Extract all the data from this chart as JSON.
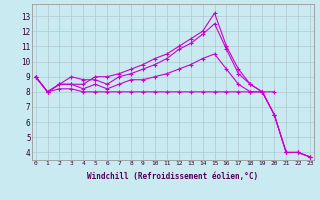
{
  "background_color": "#c8eaf0",
  "line_color": "#cc00cc",
  "grid_color": "#b0c8d0",
  "xlabel": "Windchill (Refroidissement éolien,°C)",
  "x_ticks": [
    0,
    1,
    2,
    3,
    4,
    5,
    6,
    7,
    8,
    9,
    10,
    11,
    12,
    13,
    14,
    15,
    16,
    17,
    18,
    19,
    20,
    21,
    22,
    23
  ],
  "y_ticks": [
    4,
    5,
    6,
    7,
    8,
    9,
    10,
    11,
    12,
    13
  ],
  "ylim": [
    3.5,
    13.8
  ],
  "xlim": [
    -0.3,
    23.3
  ],
  "lines": [
    {
      "x": [
        0,
        1,
        2,
        3,
        4,
        5,
        6,
        7,
        8,
        9,
        10,
        11,
        12,
        13,
        14,
        15,
        16,
        17,
        18,
        19,
        20,
        21,
        22,
        23
      ],
      "y": [
        9.0,
        8.0,
        8.5,
        8.5,
        8.5,
        9.0,
        9.0,
        9.2,
        9.5,
        9.8,
        10.2,
        10.5,
        11.0,
        11.5,
        12.0,
        13.2,
        11.0,
        9.5,
        8.5,
        8.0,
        6.5,
        4.0,
        4.0,
        3.7
      ]
    },
    {
      "x": [
        0,
        1,
        2,
        3,
        4,
        5,
        6,
        7,
        8,
        9,
        10,
        11,
        12,
        13,
        14,
        15,
        16,
        17,
        18,
        19,
        20,
        21,
        22,
        23
      ],
      "y": [
        9.0,
        8.0,
        8.5,
        9.0,
        8.8,
        8.8,
        8.5,
        9.0,
        9.2,
        9.5,
        9.8,
        10.2,
        10.8,
        11.2,
        11.8,
        12.5,
        10.8,
        9.2,
        8.5,
        8.0,
        6.5,
        4.0,
        4.0,
        3.7
      ]
    },
    {
      "x": [
        0,
        1,
        2,
        3,
        4,
        5,
        6,
        7,
        8,
        9,
        10,
        11,
        12,
        13,
        14,
        15,
        16,
        17,
        18,
        19,
        20,
        21,
        22,
        23
      ],
      "y": [
        9.0,
        8.0,
        8.5,
        8.5,
        8.2,
        8.5,
        8.2,
        8.5,
        8.8,
        8.8,
        9.0,
        9.2,
        9.5,
        9.8,
        10.2,
        10.5,
        9.5,
        8.5,
        8.0,
        8.0,
        6.5,
        4.0,
        4.0,
        3.7
      ]
    },
    {
      "x": [
        0,
        1,
        2,
        3,
        4,
        5,
        6,
        7,
        8,
        9,
        10,
        11,
        12,
        13,
        14,
        15,
        16,
        17,
        18,
        19,
        20
      ],
      "y": [
        9.0,
        8.0,
        8.2,
        8.2,
        8.0,
        8.0,
        8.0,
        8.0,
        8.0,
        8.0,
        8.0,
        8.0,
        8.0,
        8.0,
        8.0,
        8.0,
        8.0,
        8.0,
        8.0,
        8.0,
        8.0
      ]
    }
  ]
}
